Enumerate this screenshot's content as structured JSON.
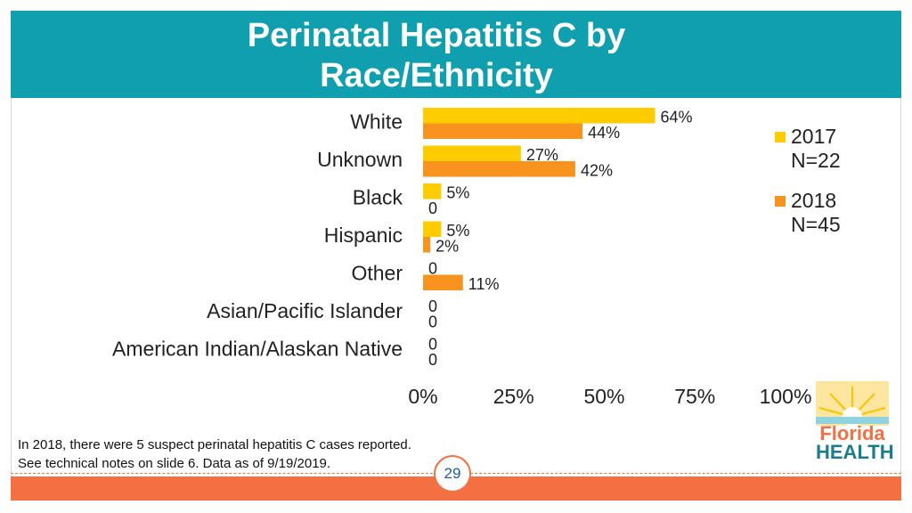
{
  "header": {
    "title_line1": "Perinatal Hepatitis C by",
    "title_line2": "Race/Ethnicity"
  },
  "colors": {
    "header_bg": "#0f9fae",
    "series_2017": "#ffcc00",
    "series_2018": "#f7931e",
    "accent": "#f47043"
  },
  "chart_data": {
    "type": "bar",
    "orientation": "horizontal",
    "categories": [
      "White",
      "Unknown",
      "Black",
      "Hispanic",
      "Other",
      "Asian/Pacific Islander",
      "American Indian/Alaskan Native"
    ],
    "series": [
      {
        "name": "2017 N=22",
        "values": [
          64,
          27,
          5,
          5,
          0,
          0,
          0
        ],
        "labels": [
          "64%",
          "27%",
          "5%",
          "5%",
          "0",
          "0",
          "0"
        ]
      },
      {
        "name": "2018 N=45",
        "values": [
          44,
          42,
          0,
          2,
          11,
          0,
          0
        ],
        "labels": [
          "44%",
          "42%",
          "0",
          "2%",
          "11%",
          "0",
          "0"
        ]
      }
    ],
    "xlim": [
      0,
      100
    ],
    "x_ticks": [
      "0%",
      "25%",
      "50%",
      "75%",
      "100%"
    ],
    "grid": false,
    "legend_position": "right"
  },
  "legend": [
    {
      "line1": "2017",
      "line2": "N=22"
    },
    {
      "line1": "2018",
      "line2": "N=45"
    }
  ],
  "footnote": {
    "line1": "In 2018, there were 5 suspect perinatal hepatitis C cases reported.",
    "line2": "See technical notes on slide 6. Data as of 9/19/2019."
  },
  "page_number": "29",
  "logo": {
    "line1": "Florida",
    "line2": "HEALTH"
  }
}
